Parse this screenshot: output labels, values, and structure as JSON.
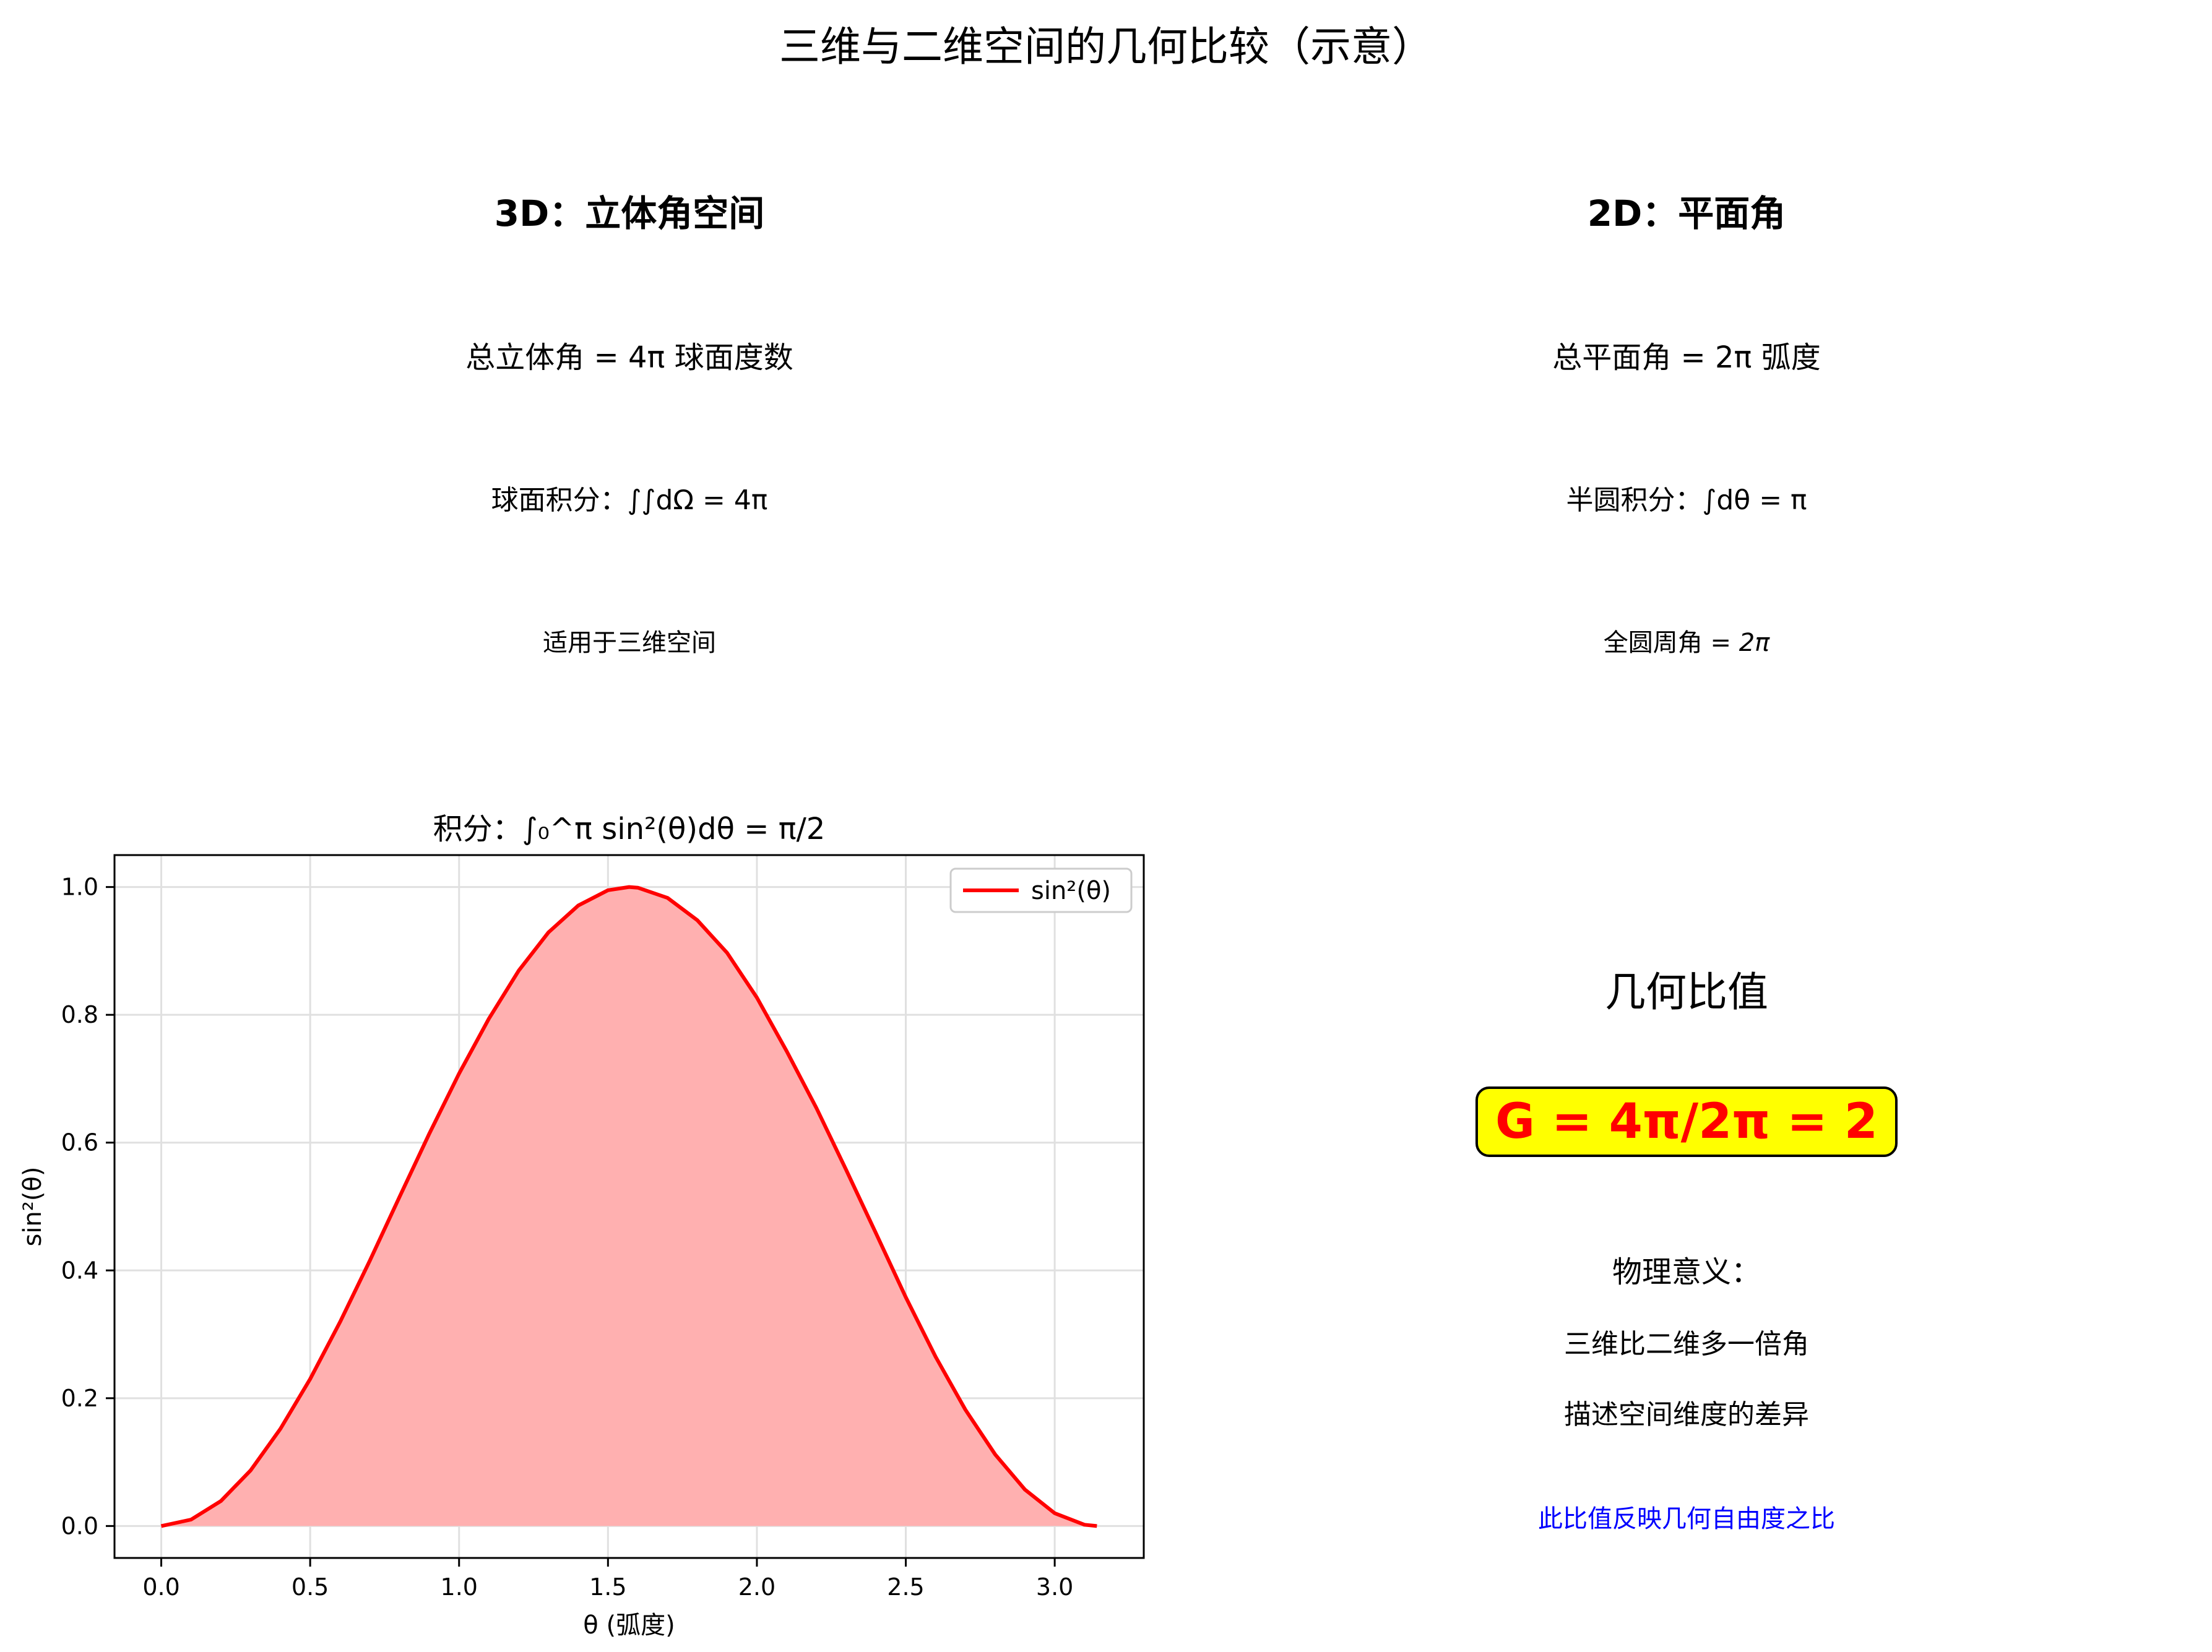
{
  "figure_title": "三维与二维空间的几何比较（示意）",
  "left_panel": {
    "title": "3D：立体角空间",
    "line1": "总立体角 = 4π 球面度数",
    "line2": "球面积分：∫∫dΩ = 4π",
    "line3": "适用于三维空间"
  },
  "right_panel": {
    "title": "2D：平面角",
    "line1": "总平面角 = 2π 弧度",
    "line2": "半圆积分：∫dθ = π",
    "line3_prefix": "全圆周角 = ",
    "line3_value": "2π"
  },
  "conclusion": {
    "title": "几何比值",
    "formula": "G = 4π/2π = 2",
    "explain_title": "物理意义：",
    "explain_line1": "三维比二维多一倍角",
    "explain_line2": "描述空间维度的差异",
    "explain_note": "此比值反映几何自由度之比"
  },
  "colors": {
    "curve": "#ff0000",
    "fill": "#ffb0b0",
    "formula_text": "#ff0000",
    "formula_box": "#ffff00",
    "note_text": "#0000ff",
    "grid": "#e0e0e0"
  },
  "chart_data": {
    "type": "area",
    "title": "积分：∫₀^π sin²(θ)dθ = π/2",
    "xlabel": "θ (弧度)",
    "ylabel": "sin²(θ)",
    "xlim": [
      -0.157,
      3.299
    ],
    "ylim": [
      -0.05,
      1.05
    ],
    "xticks": [
      0.0,
      0.5,
      1.0,
      1.5,
      2.0,
      2.5,
      3.0
    ],
    "xtick_labels": [
      "0.0",
      "0.5",
      "1.0",
      "1.5",
      "2.0",
      "2.5",
      "3.0"
    ],
    "yticks": [
      0.0,
      0.2,
      0.4,
      0.6,
      0.8,
      1.0
    ],
    "ytick_labels": [
      "0.0",
      "0.2",
      "0.4",
      "0.6",
      "0.8",
      "1.0"
    ],
    "grid": true,
    "legend_position": "upper right",
    "series": [
      {
        "name": "sin²(θ)",
        "x": [
          0.0,
          0.1,
          0.2,
          0.3,
          0.4,
          0.5,
          0.6,
          0.7,
          0.8,
          0.9,
          1.0,
          1.1,
          1.2,
          1.3,
          1.4,
          1.5,
          1.571,
          1.6,
          1.7,
          1.8,
          1.9,
          2.0,
          2.1,
          2.2,
          2.3,
          2.4,
          2.5,
          2.6,
          2.7,
          2.8,
          2.9,
          3.0,
          3.1,
          3.1416
        ],
        "y": [
          0.0,
          0.01,
          0.039,
          0.087,
          0.152,
          0.23,
          0.319,
          0.415,
          0.515,
          0.614,
          0.708,
          0.794,
          0.869,
          0.929,
          0.971,
          0.995,
          1.0,
          0.999,
          0.983,
          0.948,
          0.897,
          0.827,
          0.743,
          0.654,
          0.557,
          0.458,
          0.358,
          0.265,
          0.182,
          0.112,
          0.057,
          0.02,
          0.002,
          0.0
        ]
      }
    ]
  }
}
